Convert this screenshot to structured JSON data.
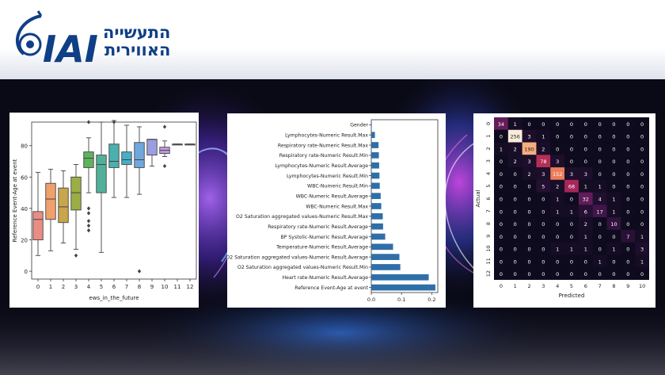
{
  "logo": {
    "brand_text": "IAI",
    "hebrew_line1": "התעשייה",
    "hebrew_line2": "האווירית",
    "brand_color": "#0f3f86"
  },
  "chart_data": [
    {
      "type": "box",
      "title": "",
      "xlabel": "ews_in_the_future",
      "ylabel": "Reference Event-Age at event",
      "ylim": [
        -5,
        95
      ],
      "yticks": [
        0,
        20,
        40,
        60,
        80
      ],
      "categories": [
        "0",
        "1",
        "2",
        "3",
        "4",
        "5",
        "6",
        "7",
        "8",
        "9",
        "10",
        "11",
        "12"
      ],
      "boxes": [
        {
          "cat": "0",
          "whislo": 10,
          "q1": 20,
          "med": 33,
          "q3": 38,
          "whishi": 63,
          "fliers": [],
          "color": "#e98d84"
        },
        {
          "cat": "1",
          "whislo": 13,
          "q1": 33,
          "med": 46,
          "q3": 56,
          "whishi": 65,
          "fliers": [],
          "color": "#f0a06b"
        },
        {
          "cat": "2",
          "whislo": 18,
          "q1": 31,
          "med": 41,
          "q3": 53,
          "whishi": 64,
          "fliers": [],
          "color": "#c8a64c"
        },
        {
          "cat": "3",
          "whislo": 14,
          "q1": 39,
          "med": 50,
          "q3": 60,
          "whishi": 68,
          "fliers": [
            10
          ],
          "color": "#9aae45"
        },
        {
          "cat": "4",
          "whislo": 50,
          "q1": 66,
          "med": 72,
          "q3": 76,
          "whishi": 85,
          "fliers": [
            95,
            40,
            37,
            32,
            29,
            26
          ],
          "color": "#5fb25c"
        },
        {
          "cat": "5",
          "whislo": 12,
          "q1": 50,
          "med": 68,
          "q3": 74,
          "whishi": 95,
          "fliers": [],
          "color": "#52b09a"
        },
        {
          "cat": "6",
          "whislo": 47,
          "q1": 66,
          "med": 70,
          "q3": 81,
          "whishi": 96,
          "fliers": [
            95
          ],
          "color": "#4bb0ae"
        },
        {
          "cat": "7",
          "whislo": 47,
          "q1": 68,
          "med": 71,
          "q3": 76,
          "whishi": 93,
          "fliers": [],
          "color": "#47aec8"
        },
        {
          "cat": "8",
          "whislo": 49,
          "q1": 66,
          "med": 71,
          "q3": 82,
          "whishi": 92,
          "fliers": [
            0
          ],
          "color": "#6fa8dc"
        },
        {
          "cat": "9",
          "whislo": 67,
          "q1": 74,
          "med": 84,
          "q3": 84,
          "whishi": 84,
          "fliers": [],
          "color": "#9b9fe0"
        },
        {
          "cat": "10",
          "whislo": 73,
          "q1": 75,
          "med": 77,
          "q3": 79,
          "whishi": 83,
          "fliers": [
            92,
            67
          ],
          "color": "#c39be0"
        },
        {
          "cat": "11",
          "whislo": 81,
          "q1": 81,
          "med": 81,
          "q3": 81,
          "whishi": 81,
          "fliers": [],
          "color": "#c39be0"
        },
        {
          "cat": "12",
          "whislo": 81,
          "q1": 81,
          "med": 81,
          "q3": 81,
          "whishi": 81,
          "fliers": [],
          "color": "#c39be0"
        }
      ]
    },
    {
      "type": "bar",
      "orientation": "horizontal",
      "title": "",
      "xlim": [
        0,
        0.22
      ],
      "xticks": [
        0.0,
        0.1,
        0.2
      ],
      "categories": [
        "Gender",
        "Lymphocytes-Numeric Result.Max",
        "Respiratory rate-Numeric Result.Max",
        "Respiratory rate-Numeric Result.Min",
        "Lymphocytes-Numeric Result.Average",
        "Lymphocytes-Numeric Result.Min",
        "WBC-Numeric Result.Min",
        "WBC-Numeric Result.Average",
        "WBC-Numeric Result.Max",
        "O2 Saturation aggregated values-Numeric Result.Max",
        "Respiratory rate-Numeric Result.Average",
        "BP Systolic-Numeric Result.Average",
        "Temperature-Numeric Result.Average",
        "O2 Saturation aggregated values-Numeric Result.Average",
        "O2 Saturation aggregated values-Numeric Result.Min",
        "Heart rate-Numeric Result.Average",
        "Reference Event-Age at event"
      ],
      "values": [
        0.001,
        0.012,
        0.024,
        0.025,
        0.026,
        0.027,
        0.028,
        0.031,
        0.033,
        0.038,
        0.039,
        0.046,
        0.072,
        0.093,
        0.096,
        0.19,
        0.212
      ],
      "color": "#2f6fa8"
    },
    {
      "type": "heatmap",
      "title": "",
      "xlabel": "Predicted",
      "ylabel": "Actual",
      "x_labels": [
        "0",
        "1",
        "2",
        "3",
        "4",
        "5",
        "6",
        "7",
        "8",
        "9",
        "10"
      ],
      "y_labels": [
        "0",
        "1",
        "2",
        "3",
        "4",
        "5",
        "6",
        "7",
        "8",
        "9",
        "10",
        "11",
        "12"
      ],
      "values": [
        [
          34,
          1,
          0,
          0,
          0,
          0,
          0,
          0,
          0,
          0,
          0
        ],
        [
          0,
          256,
          3,
          1,
          0,
          0,
          0,
          0,
          0,
          0,
          0
        ],
        [
          1,
          2,
          190,
          2,
          0,
          0,
          0,
          0,
          0,
          0,
          0
        ],
        [
          0,
          2,
          3,
          78,
          3,
          0,
          0,
          0,
          0,
          0,
          0
        ],
        [
          0,
          0,
          2,
          3,
          152,
          3,
          3,
          0,
          0,
          0,
          0
        ],
        [
          0,
          0,
          0,
          5,
          2,
          68,
          1,
          1,
          0,
          0,
          0
        ],
        [
          0,
          0,
          0,
          0,
          1,
          0,
          32,
          4,
          1,
          0,
          0
        ],
        [
          0,
          0,
          0,
          0,
          1,
          1,
          6,
          17,
          1,
          0,
          0
        ],
        [
          0,
          0,
          0,
          0,
          0,
          0,
          2,
          0,
          10,
          0,
          0
        ],
        [
          0,
          0,
          0,
          0,
          0,
          0,
          1,
          0,
          0,
          7,
          1
        ],
        [
          0,
          0,
          0,
          0,
          1,
          1,
          1,
          0,
          1,
          0,
          3
        ],
        [
          0,
          0,
          0,
          0,
          0,
          0,
          0,
          1,
          0,
          0,
          1
        ],
        [
          0,
          0,
          0,
          0,
          0,
          0,
          0,
          0,
          0,
          0,
          0
        ]
      ],
      "vmax": 256
    }
  ]
}
